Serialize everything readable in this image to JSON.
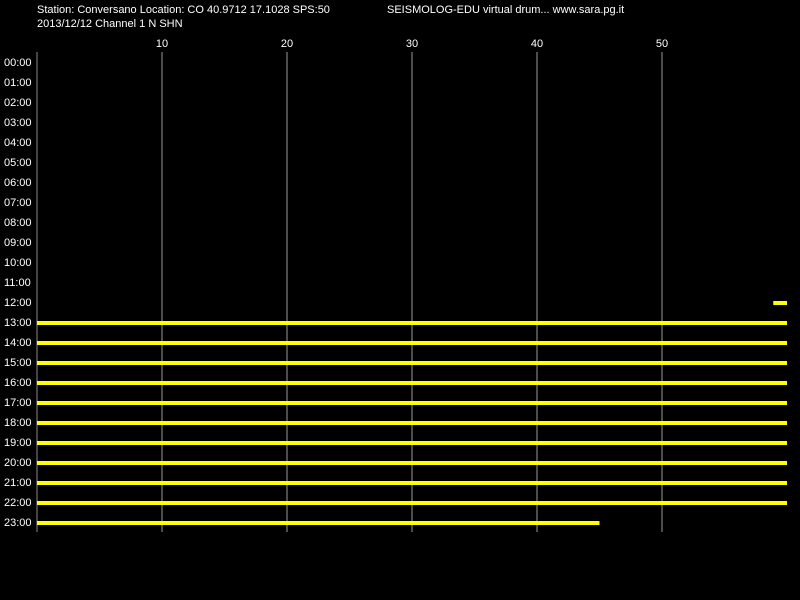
{
  "chart_data": {
    "type": "drum",
    "title": "Station: Conversano Location: CO 40.9712 17.1028 SPS:50",
    "subtitle": "2013/12/12  Channel 1 N SHN",
    "header_right": "SEISMOLOG-EDU virtual drum... www.sara.pg.it",
    "xlim": [
      0,
      60
    ],
    "xticks": [
      10,
      20,
      30,
      40,
      50
    ],
    "grid": true,
    "color": "#ffff00",
    "categories": [
      "00:00",
      "01:00",
      "02:00",
      "03:00",
      "04:00",
      "05:00",
      "06:00",
      "07:00",
      "08:00",
      "09:00",
      "10:00",
      "11:00",
      "12:00",
      "13:00",
      "14:00",
      "15:00",
      "16:00",
      "17:00",
      "18:00",
      "19:00",
      "20:00",
      "21:00",
      "22:00",
      "23:00"
    ],
    "start": [
      null,
      null,
      null,
      null,
      null,
      null,
      null,
      null,
      null,
      null,
      null,
      null,
      58.9,
      0,
      0,
      0,
      0,
      0,
      0,
      0,
      0,
      0,
      0,
      0
    ],
    "end": [
      null,
      null,
      null,
      null,
      null,
      null,
      null,
      null,
      null,
      null,
      null,
      null,
      60,
      60,
      60,
      60,
      60,
      60,
      60,
      60,
      60,
      60,
      60,
      45
    ]
  }
}
